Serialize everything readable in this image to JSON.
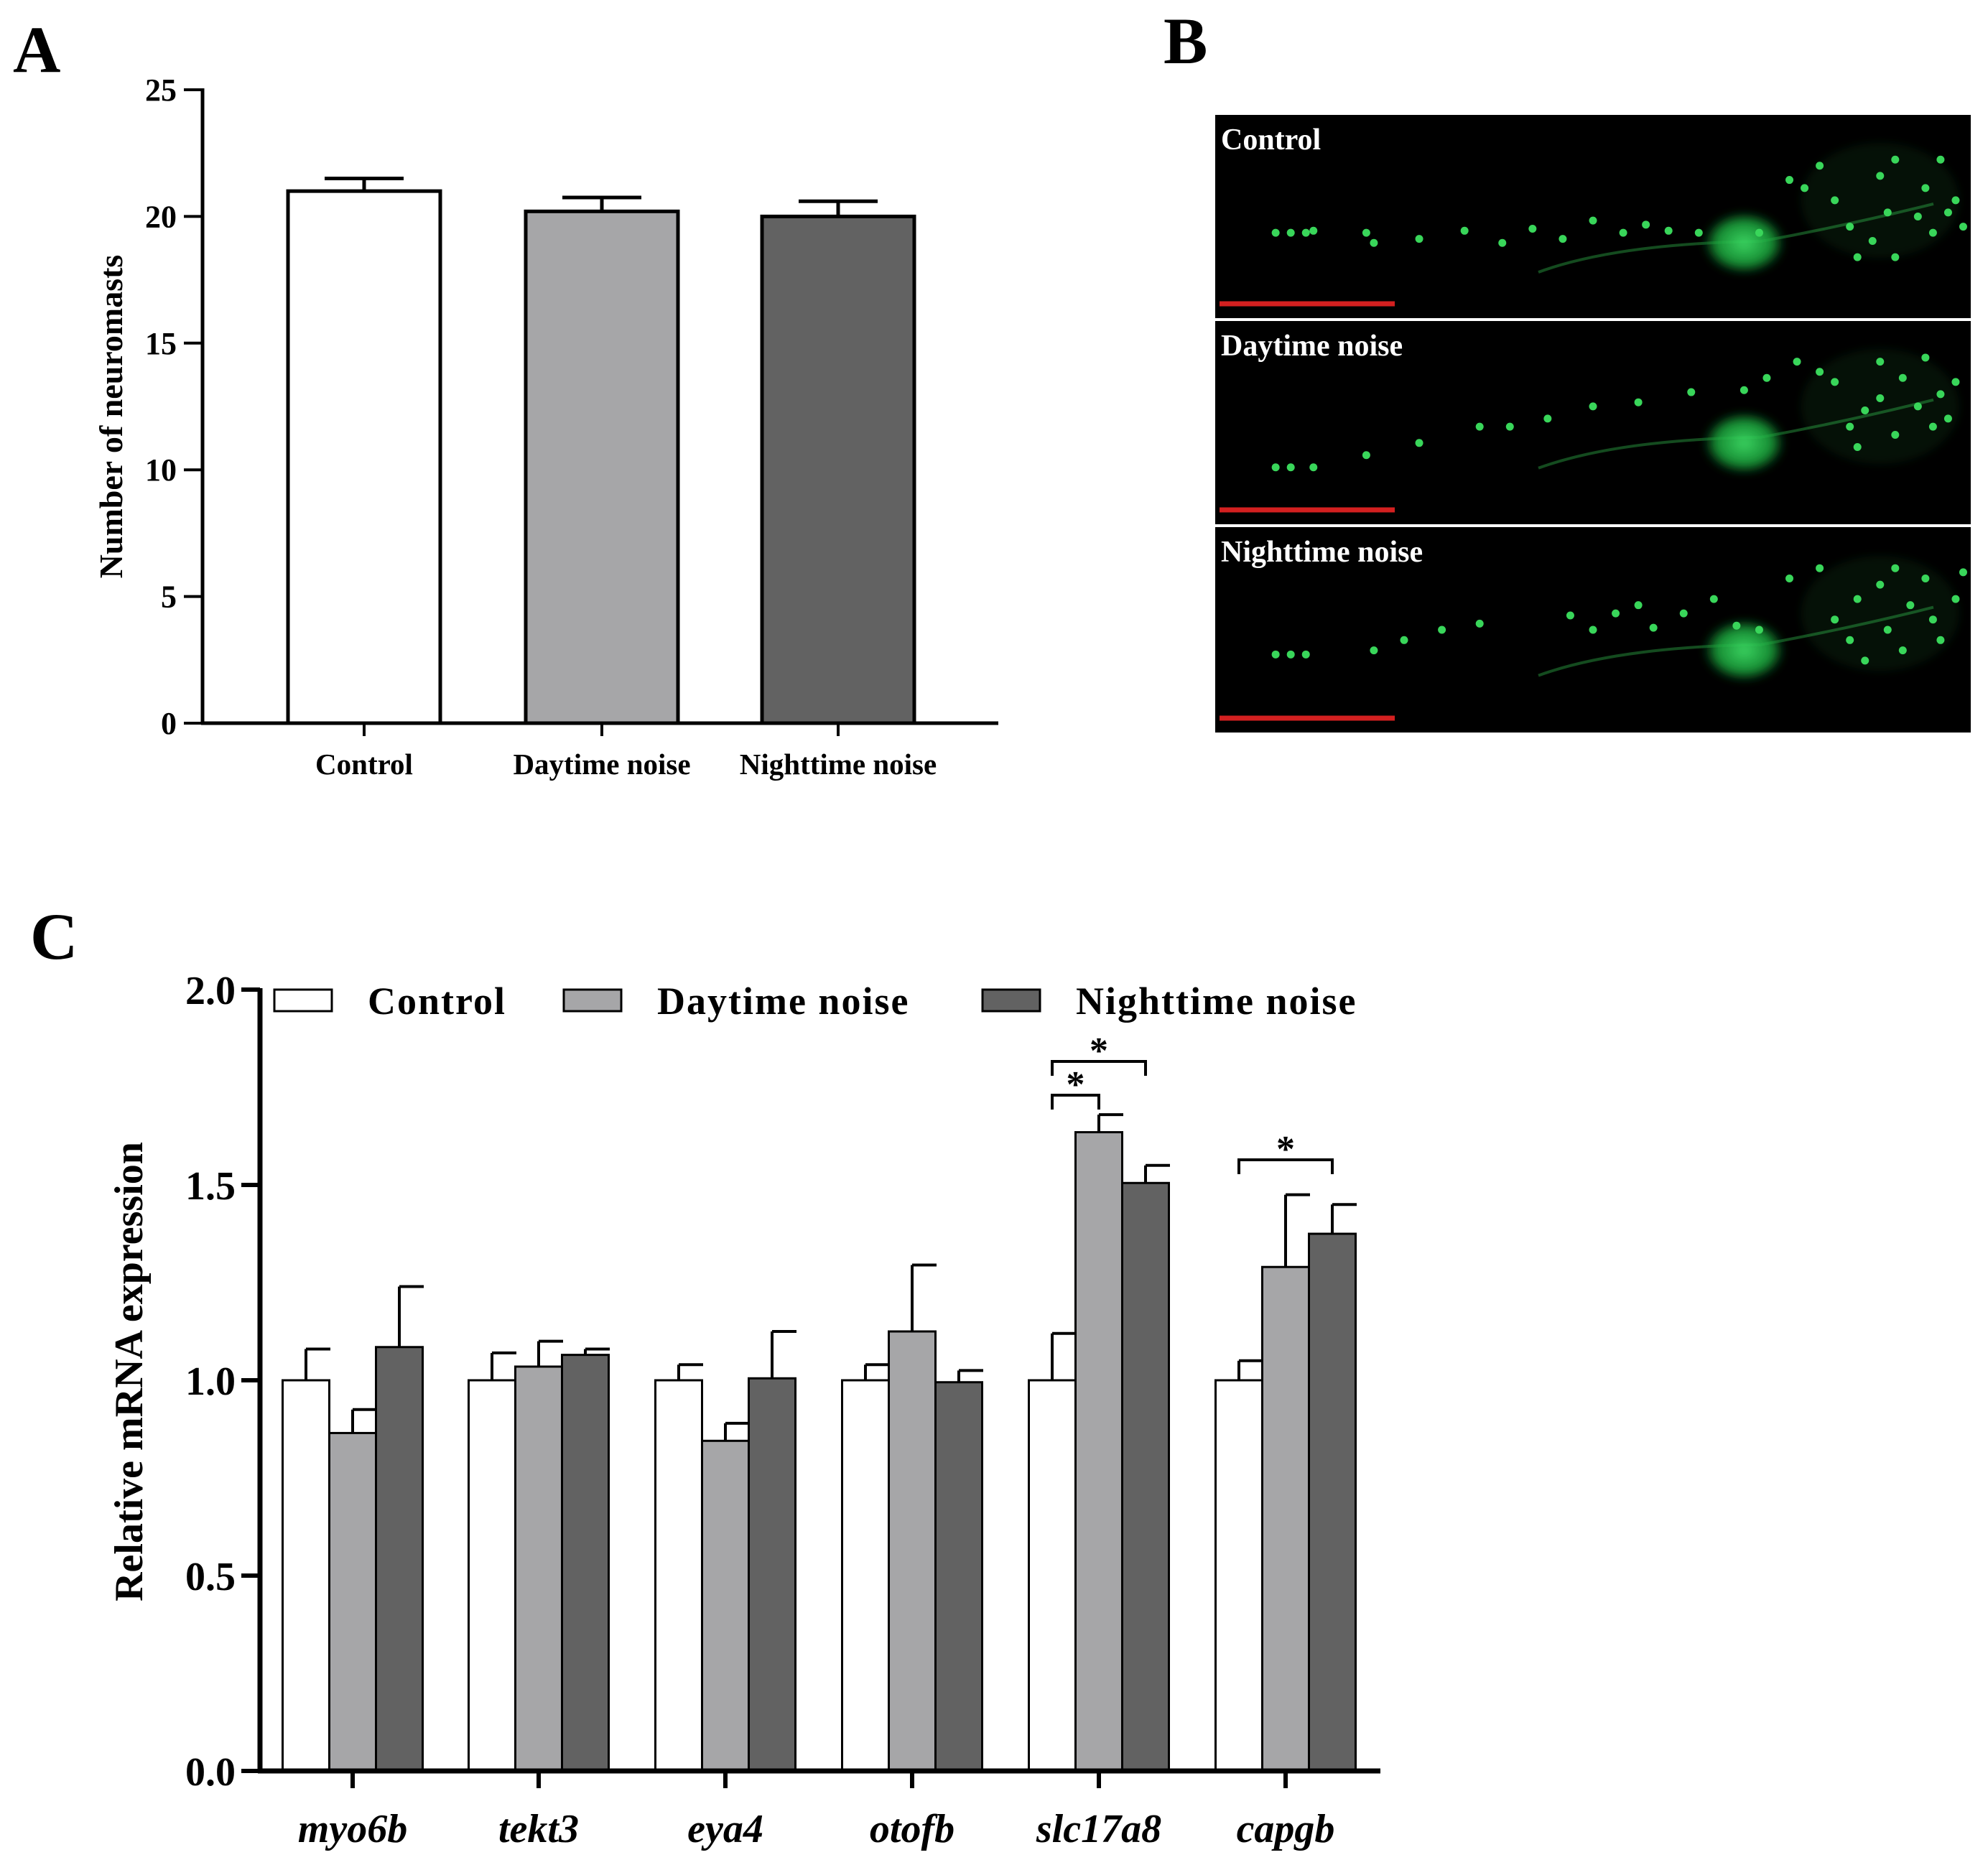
{
  "panels": {
    "A": "A",
    "B": "B",
    "C": "C"
  },
  "colors": {
    "control": "#ffffff",
    "daytime": "#a6a6a8",
    "nighttime": "#626262",
    "outline": "#000000",
    "micro_bg": "#000000",
    "fluor": "#39d65a",
    "scale_bar": "#d32020"
  },
  "chart_data": [
    {
      "id": "A",
      "type": "bar",
      "categories": [
        "Control",
        "Daytime noise",
        "Nighttime noise"
      ],
      "values": [
        21.0,
        20.2,
        20.0
      ],
      "errors": [
        0.5,
        0.55,
        0.6
      ],
      "ylabel": "Number of neuromasts",
      "xlabel": "",
      "title": "",
      "ylim": [
        0,
        25
      ],
      "yticks": [
        "0",
        "5",
        "10",
        "15",
        "20",
        "25"
      ],
      "grid": false,
      "legend": false
    },
    {
      "id": "C",
      "type": "bar",
      "categories": [
        "myo6b",
        "tekt3",
        "eya4",
        "otofb",
        "slc17a8",
        "capgb"
      ],
      "series": [
        {
          "name": "Control",
          "values": [
            1.0,
            1.0,
            1.0,
            1.0,
            1.0,
            1.0
          ],
          "errors": [
            0.08,
            0.07,
            0.04,
            0.04,
            0.12,
            0.05
          ]
        },
        {
          "name": "Daytime noise",
          "values": [
            0.865,
            1.035,
            0.845,
            1.125,
            1.635,
            1.29
          ],
          "errors": [
            0.06,
            0.065,
            0.045,
            0.17,
            0.045,
            0.185
          ]
        },
        {
          "name": "Nighttime noise",
          "values": [
            1.085,
            1.065,
            1.005,
            0.995,
            1.505,
            1.375
          ],
          "errors": [
            0.155,
            0.015,
            0.12,
            0.03,
            0.045,
            0.075
          ]
        }
      ],
      "ylabel": "Relative mRNA expression",
      "xlabel": "",
      "title": "",
      "ylim": [
        0,
        2.0
      ],
      "yticks": [
        "0.0",
        "0.5",
        "1.0",
        "1.5",
        "2.0"
      ],
      "grid": false,
      "legend": "top",
      "significance": [
        {
          "category": "slc17a8",
          "from": 0,
          "to": 2,
          "label": "*"
        },
        {
          "category": "slc17a8",
          "from": 0,
          "to": 1,
          "label": "*"
        },
        {
          "category": "capgb",
          "from": 0,
          "to": 2,
          "label": "*"
        }
      ]
    }
  ],
  "micrographs": [
    {
      "label": "Control"
    },
    {
      "label": "Daytime noise"
    },
    {
      "label": "Nighttime noise"
    }
  ]
}
